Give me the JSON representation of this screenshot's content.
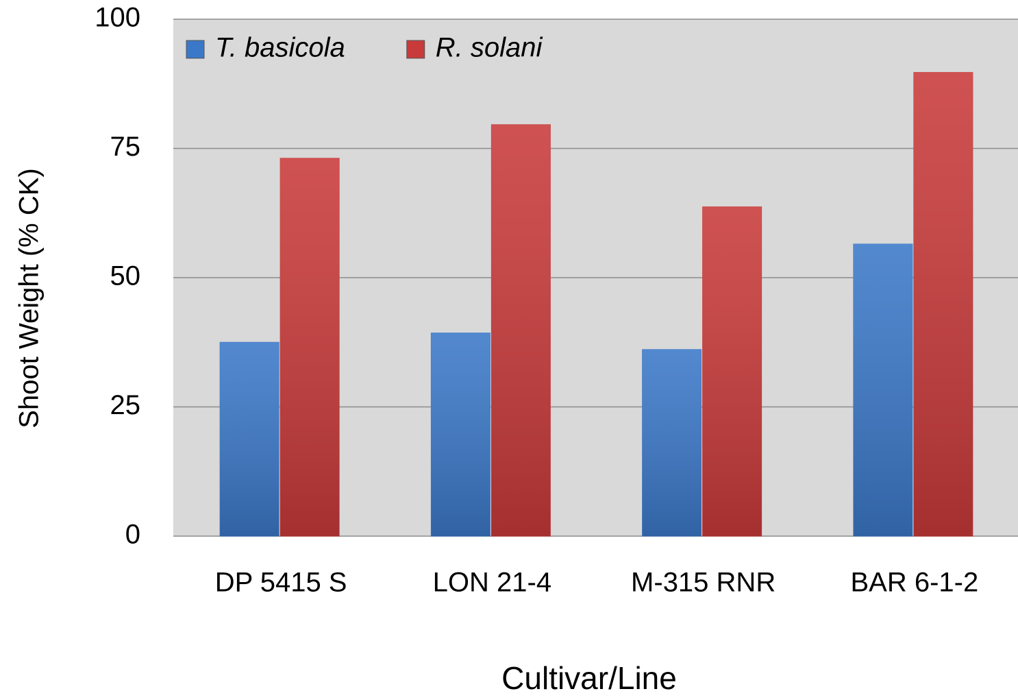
{
  "chart_data": {
    "type": "bar",
    "x_label": "Cultivar/Line",
    "y_label": "Shoot Weight (% CK)",
    "categories": [
      "DP 5415 S",
      "LON 21-4",
      "M-315 RNR",
      "BAR 6-1-2"
    ],
    "series": [
      {
        "name": "T. basicola",
        "color": "#3b78c8",
        "values": [
          37.5,
          39.3,
          36.1,
          56.5
        ]
      },
      {
        "name": "R. solani",
        "color": "#c93a3a",
        "values": [
          73.1,
          79.6,
          63.7,
          89.7
        ]
      }
    ],
    "ylim": [
      0,
      100
    ],
    "yticks": [
      0,
      25,
      50,
      75,
      100
    ],
    "grid": true,
    "legend": "top-left"
  }
}
